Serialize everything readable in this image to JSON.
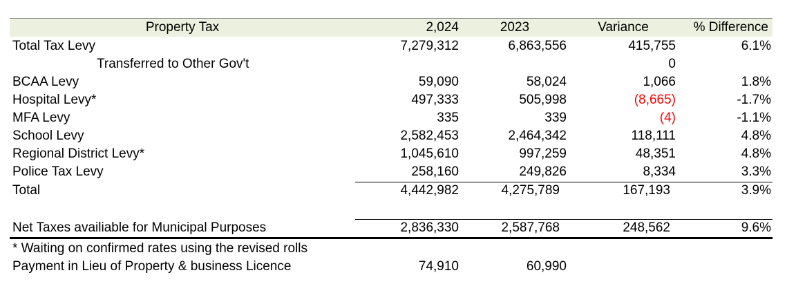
{
  "header": {
    "property_tax": "Property Tax",
    "col_2024": "2,024",
    "col_2023": "2023",
    "variance": "Variance",
    "pct_diff": "% Difference"
  },
  "rows": [
    {
      "label": "Total Tax Levy",
      "v2024": "7,279,312",
      "v2023": "6,863,556",
      "variance": "415,755",
      "pct": "6.1%"
    },
    {
      "label": "Transferred to Other Gov't",
      "v2024": "",
      "v2023": "",
      "variance": "0",
      "pct": ""
    },
    {
      "label": "BCAA Levy",
      "v2024": "59,090",
      "v2023": "58,024",
      "variance": "1,066",
      "pct": "1.8%"
    },
    {
      "label": "Hospital Levy*",
      "v2024": "497,333",
      "v2023": "505,998",
      "variance": "(8,665)",
      "pct": "-1.7%"
    },
    {
      "label": "MFA Levy",
      "v2024": "335",
      "v2023": "339",
      "variance": "(4)",
      "pct": "-1.1%"
    },
    {
      "label": "School Levy",
      "v2024": "2,582,453",
      "v2023": "2,464,342",
      "variance": "118,111",
      "pct": "4.8%"
    },
    {
      "label": "Regional District Levy*",
      "v2024": "1,045,610",
      "v2023": "997,259",
      "variance": "48,351",
      "pct": "4.8%"
    },
    {
      "label": "Police Tax Levy",
      "v2024": "258,160",
      "v2023": "249,826",
      "variance": "8,334",
      "pct": "3.3%"
    },
    {
      "label": "Total",
      "v2024": "4,442,982",
      "v2023": "4,275,789",
      "variance": "167,193",
      "pct": "3.9%"
    }
  ],
  "net": {
    "label": "Net Taxes availiable for Municipal Purposes",
    "v2024": "2,836,330",
    "v2023": "2,587,768",
    "variance": "248,562",
    "pct": "9.6%"
  },
  "note": "* Waiting on confirmed rates using the revised rolls",
  "payment": {
    "label": "Payment in Lieu of Property & business Licence",
    "v2024": "74,910",
    "v2023": "60,990"
  },
  "colors": {
    "header_bg": "#ebf1de",
    "negative": "#ff0000"
  }
}
